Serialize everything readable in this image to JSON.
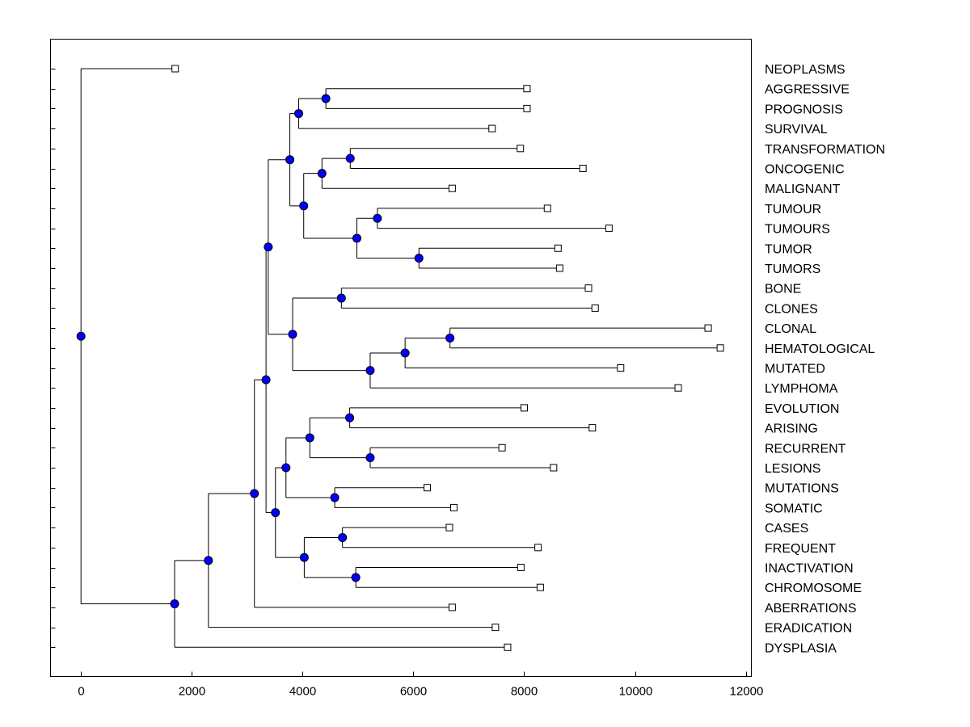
{
  "chart_data": {
    "type": "dendrogram",
    "orientation": "root-left",
    "xlim": [
      -550,
      12100
    ],
    "x_ticks": [
      0,
      2000,
      4000,
      6000,
      8000,
      10000,
      12000
    ],
    "x_tick_labels": [
      "0",
      "2000",
      "4000",
      "6000",
      "8000",
      "10000",
      "12000"
    ],
    "node_color": "#0000ff",
    "leaves": [
      {
        "label": "NEOPLASMS",
        "x": 1700
      },
      {
        "label": "AGGRESSIVE",
        "x": 8050
      },
      {
        "label": "PROGNOSIS",
        "x": 8050
      },
      {
        "label": "SURVIVAL",
        "x": 7420
      },
      {
        "label": "TRANSFORMATION",
        "x": 7930
      },
      {
        "label": "ONCOGENIC",
        "x": 9060
      },
      {
        "label": "MALIGNANT",
        "x": 6700
      },
      {
        "label": "TUMOUR",
        "x": 8420
      },
      {
        "label": "TUMOURS",
        "x": 9530
      },
      {
        "label": "TUMOR",
        "x": 8610
      },
      {
        "label": "TUMORS",
        "x": 8640
      },
      {
        "label": "BONE",
        "x": 9160
      },
      {
        "label": "CLONES",
        "x": 9280
      },
      {
        "label": "CLONAL",
        "x": 11320
      },
      {
        "label": "HEMATOLOGICAL",
        "x": 11540
      },
      {
        "label": "MUTATED",
        "x": 9740
      },
      {
        "label": "LYMPHOMA",
        "x": 10780
      },
      {
        "label": "EVOLUTION",
        "x": 8000
      },
      {
        "label": "ARISING",
        "x": 9230
      },
      {
        "label": "RECURRENT",
        "x": 7600
      },
      {
        "label": "LESIONS",
        "x": 8530
      },
      {
        "label": "MUTATIONS",
        "x": 6250
      },
      {
        "label": "SOMATIC",
        "x": 6730
      },
      {
        "label": "CASES",
        "x": 6650
      },
      {
        "label": "FREQUENT",
        "x": 8250
      },
      {
        "label": "INACTIVATION",
        "x": 7940
      },
      {
        "label": "CHROMOSOME",
        "x": 8290
      },
      {
        "label": "ABERRATIONS",
        "x": 6700
      },
      {
        "label": "ERADICATION",
        "x": 7480
      },
      {
        "label": "DYSPLASIA",
        "x": 7700
      }
    ],
    "nodes": [
      {
        "id": "n1",
        "x": 4420,
        "children": [
          "L1",
          "L2"
        ]
      },
      {
        "id": "n2",
        "x": 3930,
        "children": [
          "n1",
          "L3"
        ]
      },
      {
        "id": "n3",
        "x": 4860,
        "children": [
          "L4",
          "L5"
        ]
      },
      {
        "id": "n4",
        "x": 4350,
        "children": [
          "n3",
          "L6"
        ]
      },
      {
        "id": "n5",
        "x": 5350,
        "children": [
          "L7",
          "L8"
        ]
      },
      {
        "id": "n6",
        "x": 6100,
        "children": [
          "L9",
          "L10"
        ]
      },
      {
        "id": "n7",
        "x": 4980,
        "children": [
          "n5",
          "n6"
        ]
      },
      {
        "id": "n8",
        "x": 4020,
        "children": [
          "n4",
          "n7"
        ]
      },
      {
        "id": "n9",
        "x": 3770,
        "children": [
          "n2",
          "n8"
        ]
      },
      {
        "id": "n10",
        "x": 4700,
        "children": [
          "L11",
          "L12"
        ]
      },
      {
        "id": "n11",
        "x": 6660,
        "children": [
          "L13",
          "L14"
        ]
      },
      {
        "id": "n12",
        "x": 5850,
        "children": [
          "n11",
          "L15"
        ]
      },
      {
        "id": "n13",
        "x": 5220,
        "children": [
          "n12",
          "L16"
        ]
      },
      {
        "id": "n14",
        "x": 3820,
        "children": [
          "n10",
          "n13"
        ]
      },
      {
        "id": "n15",
        "x": 3380,
        "children": [
          "n9",
          "n14"
        ]
      },
      {
        "id": "n16",
        "x": 4850,
        "children": [
          "L17",
          "L18"
        ]
      },
      {
        "id": "n17",
        "x": 5220,
        "children": [
          "L19",
          "L20"
        ]
      },
      {
        "id": "n18",
        "x": 4130,
        "children": [
          "n16",
          "n17"
        ]
      },
      {
        "id": "n19",
        "x": 4580,
        "children": [
          "L21",
          "L22"
        ]
      },
      {
        "id": "n20",
        "x": 3700,
        "children": [
          "n18",
          "n19"
        ]
      },
      {
        "id": "n21",
        "x": 4720,
        "children": [
          "L23",
          "L24"
        ]
      },
      {
        "id": "n22",
        "x": 4960,
        "children": [
          "L25",
          "L26"
        ]
      },
      {
        "id": "n23",
        "x": 4030,
        "children": [
          "n21",
          "n22"
        ]
      },
      {
        "id": "n24",
        "x": 3510,
        "children": [
          "n20",
          "n23"
        ]
      },
      {
        "id": "n25",
        "x": 3340,
        "children": [
          "n15",
          "n24"
        ]
      },
      {
        "id": "n26",
        "x": 3130,
        "children": [
          "n25",
          "L27"
        ]
      },
      {
        "id": "n27",
        "x": 2300,
        "children": [
          "n26",
          "L28"
        ]
      },
      {
        "id": "n28",
        "x": 1690,
        "children": [
          "n27",
          "L29"
        ]
      },
      {
        "id": "n29",
        "x": 0,
        "children": [
          "L0",
          "n28"
        ]
      }
    ]
  }
}
